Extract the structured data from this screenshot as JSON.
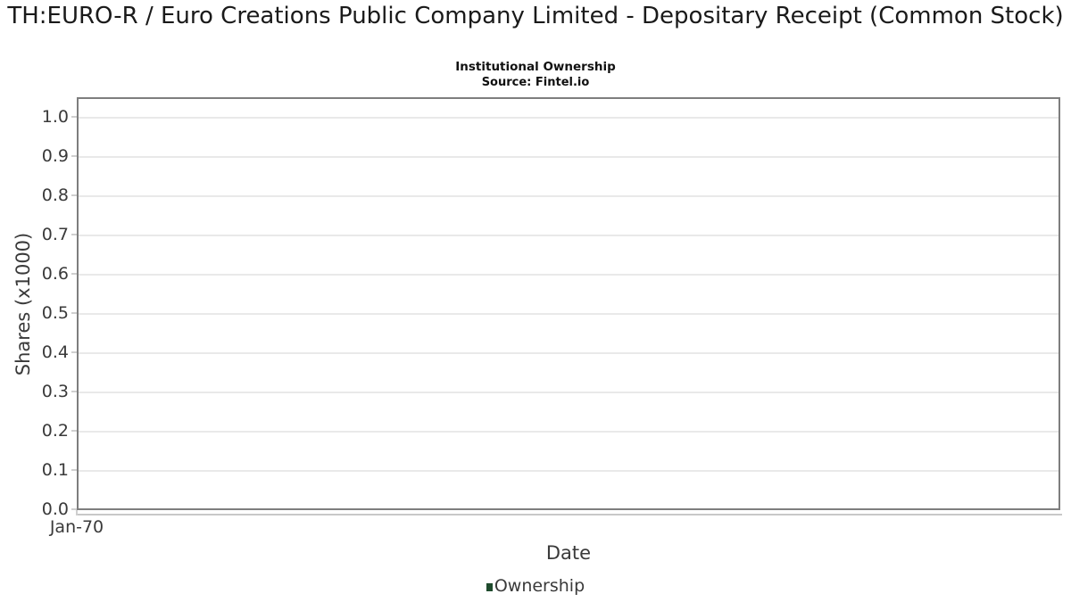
{
  "chart": {
    "title": "TH:EURO-R / Euro Creations Public Company Limited - Depositary Receipt (Common Stock)",
    "subtitle": "Institutional Ownership",
    "source": "Source: Fintel.io",
    "xlabel": "Date",
    "ylabel": "Shares (x1000)"
  },
  "chart_data": {
    "type": "line",
    "title": "TH:EURO-R / Euro Creations Public Company Limited - Depositary Receipt (Common Stock)",
    "subtitle": "Institutional Ownership",
    "source": "Source: Fintel.io",
    "xlabel": "Date",
    "ylabel": "Shares (x1000)",
    "ylim": [
      0.0,
      1.0
    ],
    "y_ticks": [
      "1.0",
      "0.9",
      "0.8",
      "0.7",
      "0.6",
      "0.5",
      "0.4",
      "0.3",
      "0.2",
      "0.1",
      "0.0"
    ],
    "x_ticks": [
      "Jan-70"
    ],
    "grid": "horizontal",
    "legend_position": "bottom-center",
    "series": [
      {
        "name": "Ownership",
        "color": "#1f4b2d",
        "x": [],
        "values": []
      }
    ]
  },
  "colors": {
    "series_ownership": "#1f4b2d",
    "axis_border": "#7e7e7e",
    "gridline": "#e9e9e9",
    "tick_mark": "#cfcfcf",
    "axis_text": "#3a3a3a",
    "title_text": "#1a1a1a"
  }
}
